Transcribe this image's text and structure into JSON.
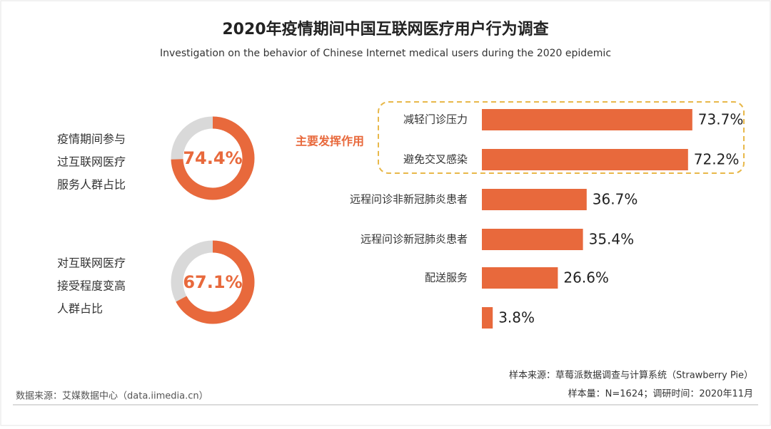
{
  "title": "2020年疫情期间中国互联网医疗用户行为调查",
  "subtitle": "Investigation on the behavior of Chinese Internet medical users during the 2020 epidemic",
  "source": "数据来源：艾媒数据中心（data.iimedia.cn）",
  "sample_source": "样本来源：草莓派数据调查与计算系统（Strawberry Pie）",
  "sample_size": "样本量：N=1624；调研时间：2020年11月",
  "chart_data": [
    {
      "type": "donut",
      "label": [
        "疫情期间参与",
        "过互联网医疗",
        "服务人群占比"
      ],
      "value": 74.4,
      "value_label": "74.4%",
      "color": "#e8693c",
      "track_color": "#d9d9d9"
    },
    {
      "type": "donut",
      "label": [
        "对互联网医疗",
        "接受程度变高",
        "人群占比"
      ],
      "value": 67.1,
      "value_label": "67.1%",
      "color": "#e8693c",
      "track_color": "#d9d9d9"
    },
    {
      "type": "hbar",
      "annotation": "主要发挥作用",
      "annotation_color": "#e8693c",
      "categories": [
        "减轻门诊压力",
        "避免交叉感染",
        "远程问诊非新冠肺炎患者",
        "远程问诊新冠肺炎患者",
        "配送服务",
        null
      ],
      "values": [
        73.7,
        72.2,
        36.7,
        35.4,
        26.6,
        3.8
      ],
      "value_labels": [
        "73.7%",
        "72.2%",
        "36.7%",
        "35.4%",
        "26.6%",
        "3.8%"
      ],
      "color": "#e8693c"
    }
  ]
}
